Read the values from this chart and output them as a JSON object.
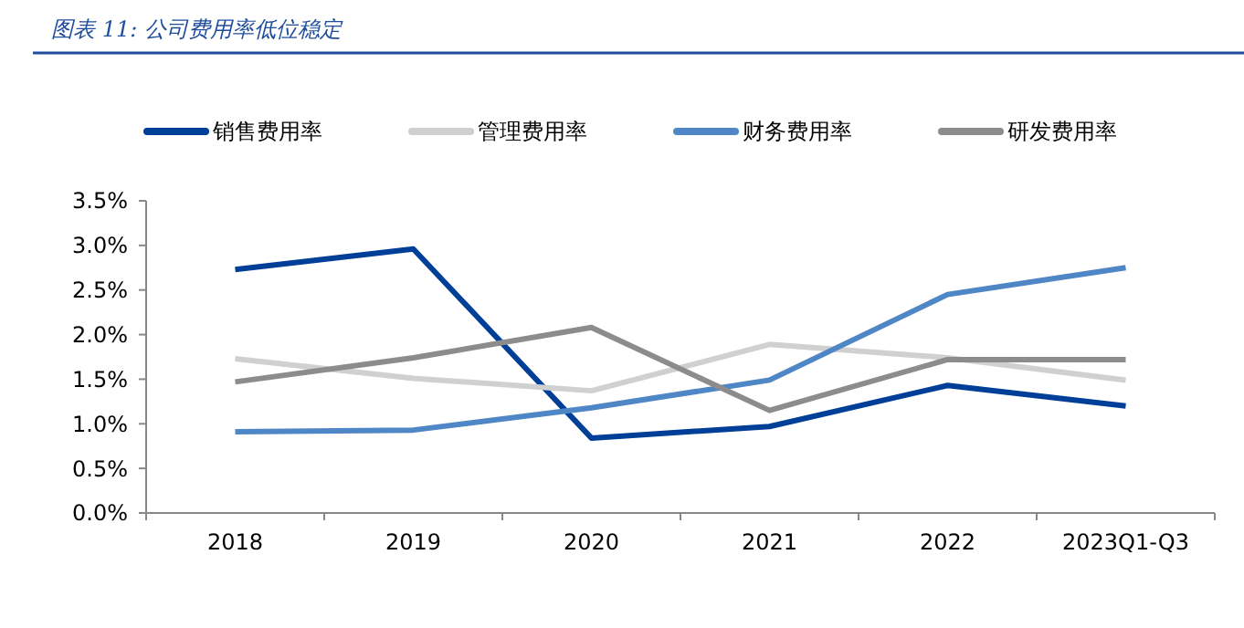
{
  "chart_data": {
    "type": "line",
    "title": "图表 11:  公司费用率低位稳定",
    "categories": [
      "2018",
      "2019",
      "2020",
      "2021",
      "2022",
      "2023Q1-Q3"
    ],
    "series": [
      {
        "name": "销售费用率",
        "color": "#003f97",
        "values": [
          2.73,
          2.96,
          0.84,
          0.97,
          1.43,
          1.2
        ]
      },
      {
        "name": "管理费用率",
        "color": "#d0d0d0",
        "values": [
          1.73,
          1.51,
          1.37,
          1.89,
          1.74,
          1.49
        ]
      },
      {
        "name": "财务费用率",
        "color": "#4f86c6",
        "values": [
          0.91,
          0.93,
          1.18,
          1.49,
          2.45,
          2.75
        ]
      },
      {
        "name": "研发费用率",
        "color": "#8c8c8c",
        "values": [
          1.47,
          1.74,
          2.08,
          1.15,
          1.72,
          1.72
        ]
      }
    ],
    "ylim": [
      0,
      3.5
    ],
    "yticks": [
      {
        "value": 0,
        "label": "0.0%"
      },
      {
        "value": 0.5,
        "label": "0.5%"
      },
      {
        "value": 1,
        "label": "1.0%"
      },
      {
        "value": 1.5,
        "label": "1.5%"
      },
      {
        "value": 2,
        "label": "2.0%"
      },
      {
        "value": 2.5,
        "label": "2.5%"
      },
      {
        "value": 3,
        "label": "3.0%"
      },
      {
        "value": 3.5,
        "label": "3.5%"
      }
    ],
    "grid": false,
    "legend": "top",
    "marker": "none",
    "line_style": "solid"
  }
}
